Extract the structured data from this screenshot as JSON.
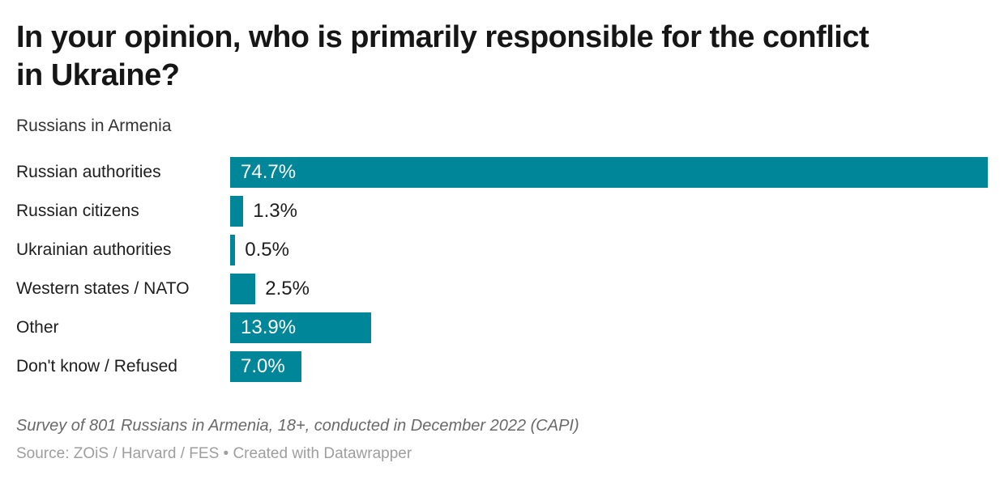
{
  "header": {
    "title_lines": [
      "In your opinion, who is primarily responsible for the conflict",
      "in Ukraine?"
    ],
    "subtitle": "Russians in Armenia"
  },
  "chart_data": {
    "type": "bar",
    "orientation": "horizontal",
    "title": "In your opinion, who is primarily responsible for the conflict in Ukraine?",
    "subtitle": "Russians in Armenia",
    "categories": [
      "Russian authorities",
      "Russian citizens",
      "Ukrainian authorities",
      "Western states / NATO",
      "Other",
      "Don't know / Refused"
    ],
    "values": [
      74.7,
      1.3,
      0.5,
      2.5,
      13.9,
      7.0
    ],
    "value_labels": [
      "74.7%",
      "1.3%",
      "0.5%",
      "2.5%",
      "13.9%",
      "7.0%"
    ],
    "unit": "%",
    "xlim": [
      0,
      74.7
    ],
    "grid": false,
    "legend": "none",
    "bar_color": "#008699",
    "inside_label_color": "#ffffff",
    "outside_label_color": "#1d1d1d"
  },
  "footer": {
    "note": "Survey of 801 Russians in Armenia, 18+, conducted in December 2022 (CAPI)",
    "source": "Source: ZOiS / Harvard / FES • Created with Datawrapper"
  }
}
